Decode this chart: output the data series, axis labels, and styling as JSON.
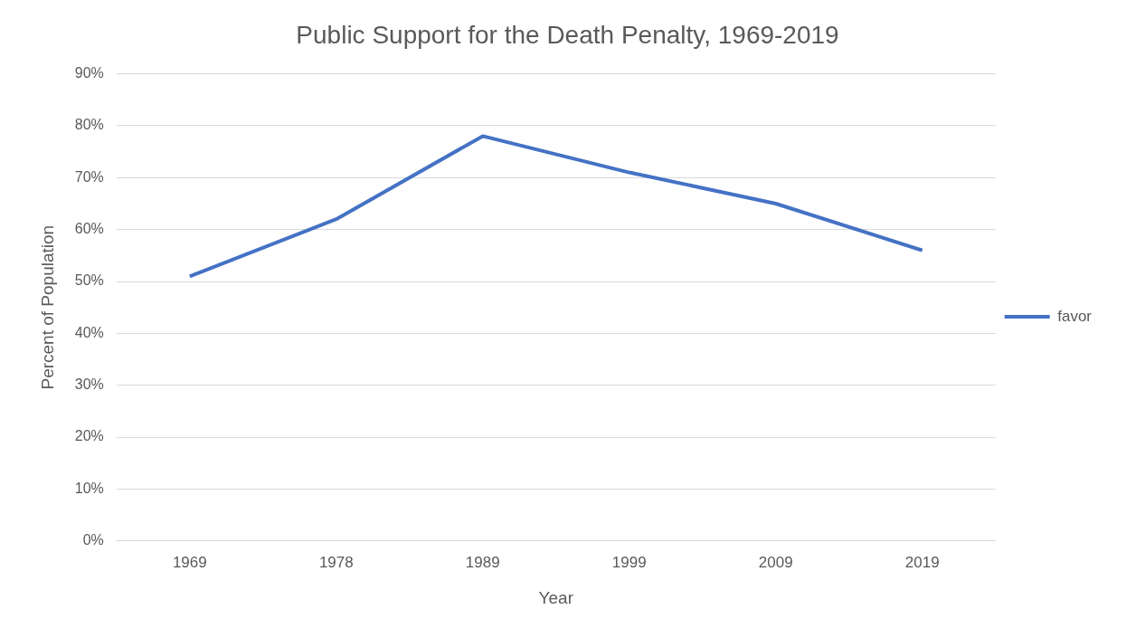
{
  "chart_data": {
    "type": "line",
    "title": "Public Support for the Death Penalty, 1969-2019",
    "xlabel": "Year",
    "ylabel": "Percent of Population",
    "categories": [
      "1969",
      "1978",
      "1989",
      "1999",
      "2009",
      "2019"
    ],
    "series": [
      {
        "name": "favor",
        "color": "#4472c4",
        "values": [
          51,
          62,
          78,
          71,
          65,
          56
        ]
      }
    ],
    "ylim": [
      0,
      90
    ],
    "yticks": [
      {
        "value": 0,
        "label": "0%"
      },
      {
        "value": 10,
        "label": "10%"
      },
      {
        "value": 20,
        "label": "20%"
      },
      {
        "value": 30,
        "label": "30%"
      },
      {
        "value": 40,
        "label": "40%"
      },
      {
        "value": 50,
        "label": "50%"
      },
      {
        "value": 60,
        "label": "60%"
      },
      {
        "value": 70,
        "label": "70%"
      },
      {
        "value": 80,
        "label": "80%"
      },
      {
        "value": 90,
        "label": "90%"
      }
    ],
    "grid": "y",
    "legend": "right",
    "marker": "none",
    "line_style": "solid"
  }
}
